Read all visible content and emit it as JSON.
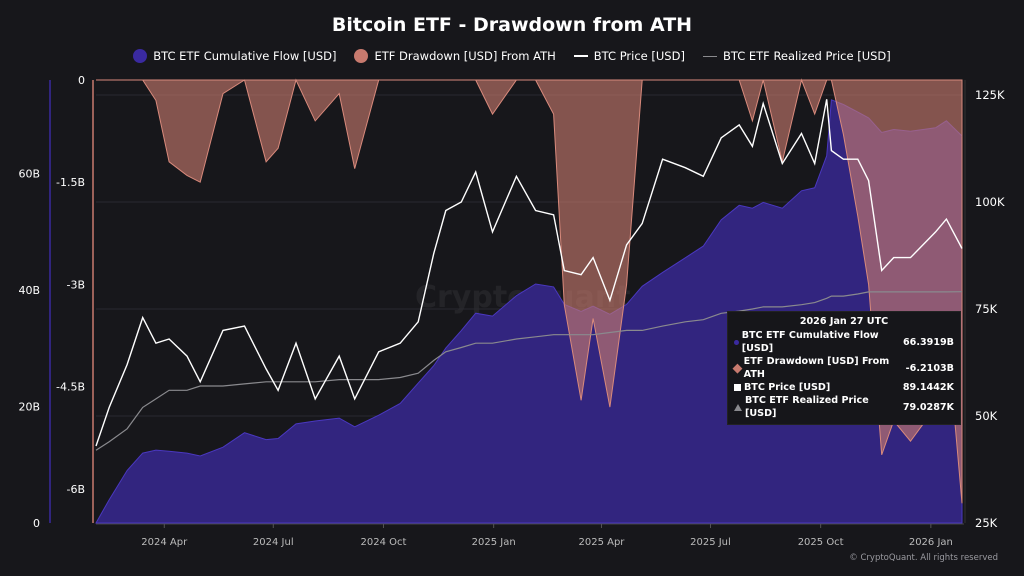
{
  "chart_data": {
    "type": "area",
    "title": "Bitcoin ETF - Drawdown from ATH",
    "legend_position": "top",
    "grid": true,
    "x": [
      "2024-02-04",
      "2024-02-15",
      "2024-03-01",
      "2024-03-14",
      "2024-03-25",
      "2024-04-05",
      "2024-04-20",
      "2024-05-01",
      "2024-05-20",
      "2024-06-07",
      "2024-06-25",
      "2024-07-05",
      "2024-07-20",
      "2024-08-05",
      "2024-08-25",
      "2024-09-07",
      "2024-09-27",
      "2024-10-15",
      "2024-10-30",
      "2024-11-12",
      "2024-11-22",
      "2024-12-05",
      "2024-12-17",
      "2024-12-31",
      "2025-01-20",
      "2025-02-05",
      "2025-02-20",
      "2025-03-01",
      "2025-03-15",
      "2025-03-25",
      "2025-04-08",
      "2025-04-22",
      "2025-05-05",
      "2025-05-22",
      "2025-06-10",
      "2025-06-25",
      "2025-07-10",
      "2025-07-25",
      "2025-08-05",
      "2025-08-14",
      "2025-08-30",
      "2025-09-15",
      "2025-09-26",
      "2025-10-06",
      "2025-10-10",
      "2025-10-20",
      "2025-11-01",
      "2025-11-10",
      "2025-11-21",
      "2025-12-01",
      "2025-12-15",
      "2026-01-05",
      "2026-01-14",
      "2026-01-27"
    ],
    "series": [
      {
        "name": "BTC ETF Cumulative Flow [USD]",
        "axis": "left-outer",
        "unit": "B",
        "color": "#3a2aa0",
        "values": [
          0,
          4,
          9,
          12,
          12.5,
          12.3,
          12,
          11.5,
          13,
          15.5,
          14.3,
          14.5,
          17,
          17.5,
          18,
          16.5,
          18.5,
          20.5,
          24,
          27,
          30,
          33,
          36,
          35.5,
          39,
          41,
          40.5,
          37.5,
          36.3,
          37.2,
          35.8,
          37.5,
          40.6,
          43,
          45.5,
          47.5,
          52,
          54.5,
          54,
          55,
          54,
          57,
          57.5,
          63,
          72.6,
          71.8,
          70.5,
          69.5,
          67,
          67.5,
          67.2,
          67.8,
          69,
          66.3919
        ]
      },
      {
        "name": "ETF Drawdown [USD] From ATH",
        "axis": "left-inner",
        "unit": "B",
        "color": "#c87a6e",
        "values": [
          0,
          0,
          0,
          0,
          -0.3,
          -1.2,
          -1.4,
          -1.5,
          -0.2,
          0,
          -1.2,
          -1.0,
          0,
          -0.6,
          -0.2,
          -1.3,
          0,
          0,
          0,
          0,
          0,
          0,
          0,
          -0.5,
          0,
          0,
          -0.5,
          -3.3,
          -4.7,
          -3.5,
          -4.8,
          -3.0,
          0,
          0,
          0,
          0,
          0,
          0,
          -0.6,
          0,
          -1.2,
          0,
          -0.5,
          0,
          0,
          -0.8,
          -2.0,
          -3.0,
          -5.5,
          -5.0,
          -5.3,
          -4.8,
          -3.6,
          -6.2103
        ]
      },
      {
        "name": "BTC Price [USD]",
        "axis": "right",
        "unit": "K",
        "color": "#ffffff",
        "values": [
          43,
          52,
          62,
          73,
          67,
          68,
          64,
          58,
          70,
          71,
          61,
          56,
          67,
          54,
          64,
          54,
          65,
          67,
          72,
          88,
          98,
          100,
          107,
          93,
          106,
          98,
          97,
          84,
          83,
          87,
          77,
          90,
          95,
          110,
          108,
          106,
          115,
          118,
          113,
          123,
          109,
          116,
          109,
          124,
          112,
          110,
          110,
          105,
          84,
          87,
          87,
          93,
          96,
          89.1442
        ]
      },
      {
        "name": "BTC ETF Realized Price [USD]",
        "axis": "right",
        "unit": "K",
        "color": "#8a8a8e",
        "values": [
          42,
          44,
          47,
          52,
          54,
          56,
          56,
          57,
          57,
          57.5,
          58,
          58,
          58,
          58,
          58.5,
          58.5,
          58.5,
          59,
          60,
          63,
          65,
          66,
          67,
          67,
          68,
          68.5,
          69,
          69,
          69,
          69,
          69.5,
          70,
          70,
          71,
          72,
          72.5,
          74,
          74.5,
          75,
          75.5,
          75.5,
          76,
          76.5,
          77.5,
          78,
          78,
          78.5,
          79,
          79,
          79,
          79,
          79,
          79,
          79.0287
        ]
      }
    ],
    "axes": {
      "left_outer": {
        "range": [
          0,
          76
        ],
        "ticks": [
          {
            "v": 0,
            "label": "0"
          },
          {
            "v": 20,
            "label": "20B"
          },
          {
            "v": 40,
            "label": "40B"
          },
          {
            "v": 60,
            "label": "60B"
          }
        ]
      },
      "left_inner": {
        "range": [
          -6.5,
          0
        ],
        "ticks": [
          {
            "v": 0,
            "label": "0"
          },
          {
            "v": -1.5,
            "label": "-1.5B"
          },
          {
            "v": -3,
            "label": "-3B"
          },
          {
            "v": -4.5,
            "label": "-4.5B"
          },
          {
            "v": -6,
            "label": "-6B"
          }
        ]
      },
      "right": {
        "range": [
          25,
          128.5
        ],
        "ticks": [
          {
            "v": 25,
            "label": "25K"
          },
          {
            "v": 50,
            "label": "50K"
          },
          {
            "v": 75,
            "label": "75K"
          },
          {
            "v": 100,
            "label": "100K"
          },
          {
            "v": 125,
            "label": "125K"
          }
        ]
      },
      "x_ticks": [
        {
          "d": "2024-04-01",
          "label": "2024 Apr"
        },
        {
          "d": "2024-07-01",
          "label": "2024 Jul"
        },
        {
          "d": "2024-10-01",
          "label": "2024 Oct"
        },
        {
          "d": "2025-01-01",
          "label": "2025 Jan"
        },
        {
          "d": "2025-04-01",
          "label": "2025 Apr"
        },
        {
          "d": "2025-07-01",
          "label": "2025 Jul"
        },
        {
          "d": "2025-10-01",
          "label": "2025 Oct"
        },
        {
          "d": "2026-01-01",
          "label": "2026 Jan"
        }
      ]
    }
  },
  "legend": [
    "BTC ETF Cumulative Flow [USD]",
    "ETF Drawdown [USD] From ATH",
    "BTC Price [USD]",
    "BTC ETF Realized Price [USD]"
  ],
  "tooltip": {
    "date": "2026 Jan 27 UTC",
    "rows": [
      {
        "label": "BTC ETF Cumulative Flow [USD]",
        "value": "66.3919B"
      },
      {
        "label": "ETF Drawdown [USD] From ATH",
        "value": "-6.2103B"
      },
      {
        "label": "BTC Price [USD]",
        "value": "89.1442K"
      },
      {
        "label": "BTC ETF Realized Price [USD]",
        "value": "79.0287K"
      }
    ]
  },
  "watermark": "CryptoQuant",
  "copyright": "© CryptoQuant. All rights reserved"
}
